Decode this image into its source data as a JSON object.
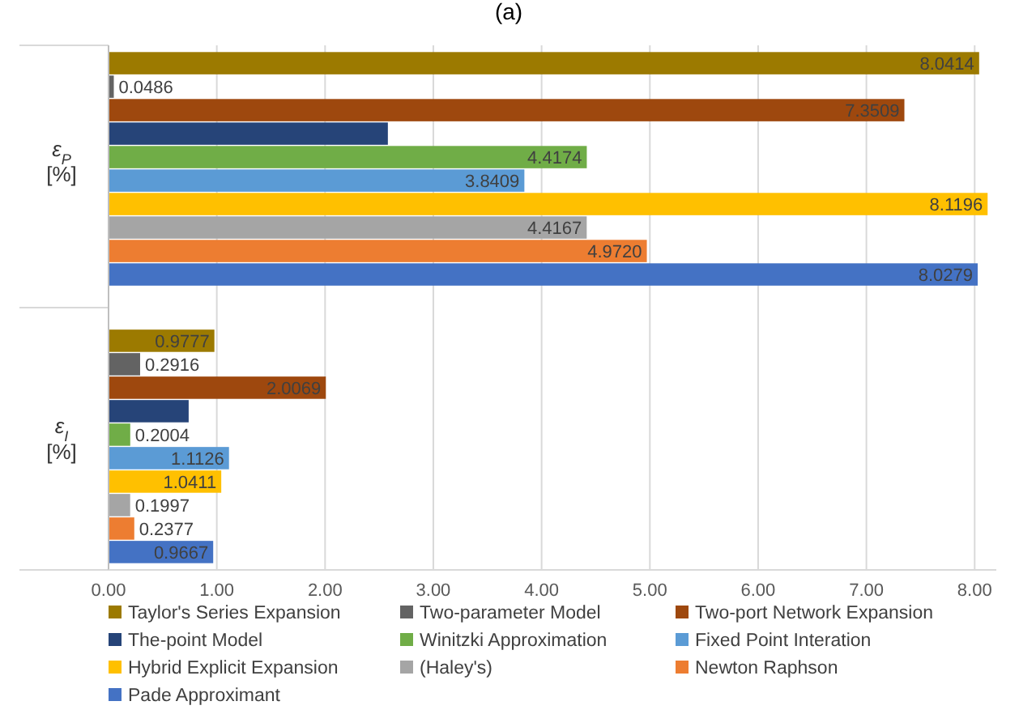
{
  "chart_data": {
    "type": "bar",
    "title": "(a)",
    "orientation": "horizontal",
    "categories": [
      "ε$_{P}$ [%]",
      "ε$_{I}$ [%]"
    ],
    "xlim": [
      0,
      8.2
    ],
    "xticks": [
      {
        "value": 0,
        "label": "0.00"
      },
      {
        "value": 1,
        "label": "1.00"
      },
      {
        "value": 2,
        "label": "2.00"
      },
      {
        "value": 3,
        "label": "3.00"
      },
      {
        "value": 4,
        "label": "4.00"
      },
      {
        "value": 5,
        "label": "5.00"
      },
      {
        "value": 6,
        "label": "6.00"
      },
      {
        "value": 7,
        "label": "7.00"
      },
      {
        "value": 8,
        "label": "8.00"
      }
    ],
    "grid": "x",
    "legend": "bottom",
    "series": [
      {
        "name": "Taylor's Series Expansion",
        "color": "#9c7a00",
        "values": [
          8.0414,
          0.9777
        ],
        "value_labels": [
          "8.0414",
          "0.9777"
        ]
      },
      {
        "name": "Two-parameter Model",
        "color": "#636363",
        "values": [
          0.0486,
          0.2916
        ],
        "value_labels": [
          "0.0486",
          "0.2916"
        ]
      },
      {
        "name": "Two-port Network Expansion",
        "color": "#9e480e",
        "values": [
          7.3509,
          2.0069
        ],
        "value_labels": [
          "7.3509",
          "2.0069"
        ]
      },
      {
        "name": "The-point Model",
        "color": "#264478",
        "values": [
          2.58,
          0.74
        ],
        "value_labels": [
          null,
          null
        ]
      },
      {
        "name": "Winitzki Approximation",
        "color": "#70ad47",
        "values": [
          4.4174,
          0.2004
        ],
        "value_labels": [
          "4.4174",
          "0.2004"
        ]
      },
      {
        "name": "Fixed Point Interation",
        "color": "#5b9bd5",
        "values": [
          3.8409,
          1.1126
        ],
        "value_labels": [
          "3.8409",
          "1.1126"
        ]
      },
      {
        "name": "Hybrid Explicit Expansion",
        "color": "#ffc000",
        "values": [
          8.1196,
          1.0411
        ],
        "value_labels": [
          "8.1196",
          "1.0411"
        ]
      },
      {
        "name": "(Haley's)",
        "color": "#a5a5a5",
        "values": [
          4.4167,
          0.1997
        ],
        "value_labels": [
          "4.4167",
          "0.1997"
        ]
      },
      {
        "name": "Newton Raphson",
        "color": "#ed7d31",
        "values": [
          4.972,
          0.2377
        ],
        "value_labels": [
          "4.9720",
          "0.2377"
        ]
      },
      {
        "name": "Pade Approximant",
        "color": "#4472c4",
        "values": [
          8.0279,
          0.9667
        ],
        "value_labels": [
          "8.0279",
          "0.9667"
        ]
      }
    ]
  }
}
